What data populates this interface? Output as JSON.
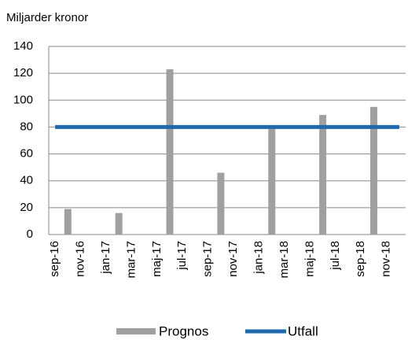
{
  "chart_data": {
    "type": "bar",
    "y_label": "Miljarder kronor",
    "categories": [
      "sep-16",
      null,
      "nov-16",
      null,
      "jan-17",
      null,
      "mar-17",
      null,
      "maj-17",
      null,
      "jul-17",
      null,
      "sep-17",
      null,
      "nov-17",
      null,
      "jan-18",
      null,
      "mar-18",
      null,
      "maj-18",
      null,
      "jul-18",
      null,
      "sep-18",
      null,
      "nov-18",
      null
    ],
    "series": [
      {
        "name": "Prognos",
        "type": "bar",
        "color": "#a0a0a0",
        "values": [
          null,
          19,
          null,
          null,
          null,
          16,
          null,
          null,
          null,
          123,
          null,
          null,
          null,
          46,
          null,
          null,
          null,
          79,
          null,
          null,
          null,
          89,
          null,
          null,
          null,
          95,
          null,
          null
        ]
      },
      {
        "name": "Utfall",
        "type": "line",
        "color": "#1f68ad",
        "values": [
          80,
          80,
          80,
          80,
          80,
          80,
          80,
          80,
          80,
          80,
          80,
          80,
          80,
          80,
          80,
          80,
          80,
          80,
          80,
          80,
          80,
          80,
          80,
          80,
          80,
          80,
          80,
          80
        ]
      }
    ],
    "ylim": [
      0,
      140
    ],
    "yticks": [
      0,
      20,
      40,
      60,
      80,
      100,
      120,
      140
    ],
    "grid": true,
    "legend": "bottom"
  }
}
